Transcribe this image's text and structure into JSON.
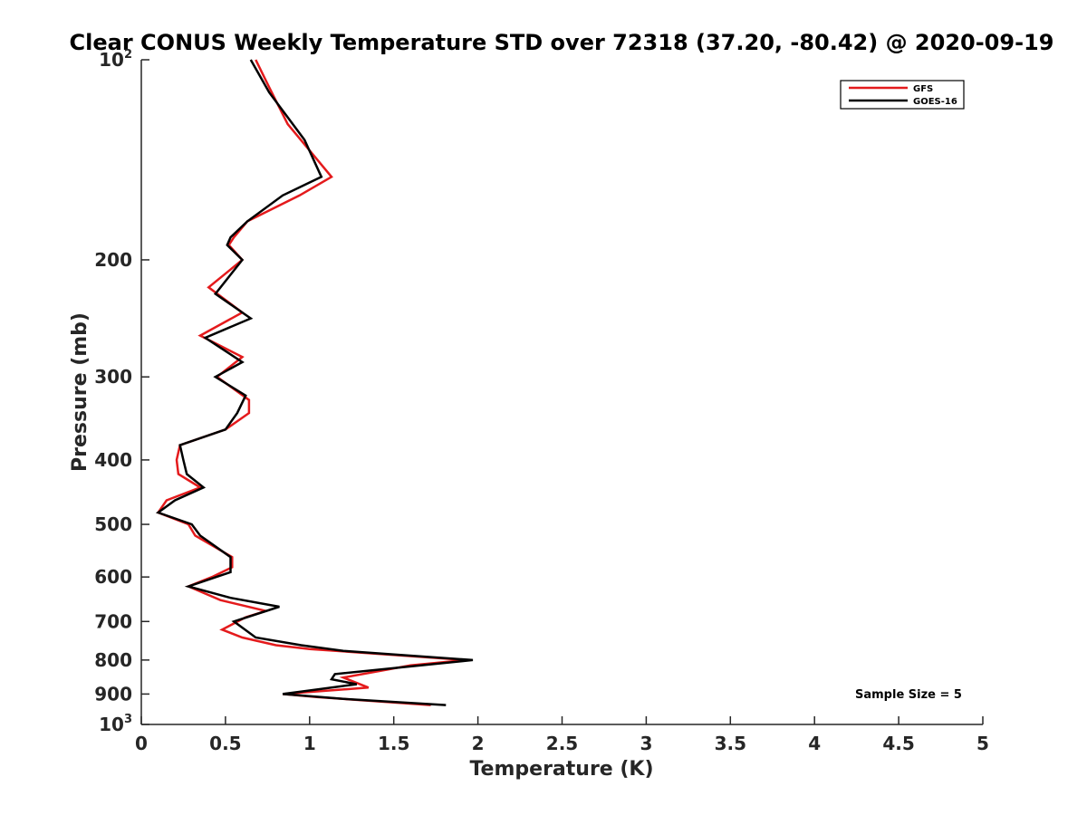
{
  "chart_data": {
    "type": "line",
    "title": "Clear CONUS Weekly Temperature STD over 72318 (37.20, -80.42) @ 2020-09-19",
    "xlabel": "Temperature (K)",
    "ylabel": "Pressure (mb)",
    "xlim": [
      0,
      5
    ],
    "ylim": [
      1000,
      100
    ],
    "yscale": "log",
    "y_reversed": true,
    "xticks": [
      "0",
      "0.5",
      "1",
      "1.5",
      "2",
      "2.5",
      "3",
      "3.5",
      "4",
      "4.5",
      "5"
    ],
    "xtick_values": [
      0,
      0.5,
      1,
      1.5,
      2,
      2.5,
      3,
      3.5,
      4,
      4.5,
      5
    ],
    "yticks": [
      {
        "value": 100,
        "base": "10",
        "exp": "2"
      },
      {
        "value": 200,
        "label": "200"
      },
      {
        "value": 300,
        "label": "300"
      },
      {
        "value": 400,
        "label": "400"
      },
      {
        "value": 500,
        "label": "500"
      },
      {
        "value": 600,
        "label": "600"
      },
      {
        "value": 700,
        "label": "700"
      },
      {
        "value": 800,
        "label": "800"
      },
      {
        "value": 900,
        "label": "900"
      },
      {
        "value": 1000,
        "base": "10",
        "exp": "3"
      }
    ],
    "legend_position": "top-right",
    "annotation": "Sample Size = 5",
    "grid": false,
    "series": [
      {
        "name": "GFS",
        "color": "#e41a1c",
        "points": [
          [
            0.68,
            100
          ],
          [
            0.76,
            110
          ],
          [
            0.87,
            125
          ],
          [
            1.13,
            150
          ],
          [
            0.94,
            160
          ],
          [
            0.63,
            175
          ],
          [
            0.55,
            185
          ],
          [
            0.52,
            190
          ],
          [
            0.6,
            200
          ],
          [
            0.4,
            220
          ],
          [
            0.6,
            240
          ],
          [
            0.35,
            260
          ],
          [
            0.6,
            280
          ],
          [
            0.45,
            300
          ],
          [
            0.64,
            325
          ],
          [
            0.64,
            340
          ],
          [
            0.5,
            360
          ],
          [
            0.23,
            380
          ],
          [
            0.21,
            400
          ],
          [
            0.22,
            420
          ],
          [
            0.35,
            440
          ],
          [
            0.15,
            460
          ],
          [
            0.1,
            480
          ],
          [
            0.28,
            500
          ],
          [
            0.32,
            520
          ],
          [
            0.54,
            560
          ],
          [
            0.54,
            580
          ],
          [
            0.42,
            600
          ],
          [
            0.28,
            620
          ],
          [
            0.47,
            650
          ],
          [
            0.74,
            675
          ],
          [
            0.62,
            690
          ],
          [
            0.48,
            720
          ],
          [
            0.6,
            740
          ],
          [
            0.8,
            760
          ],
          [
            1.0,
            770
          ],
          [
            1.93,
            800
          ],
          [
            1.6,
            815
          ],
          [
            1.2,
            850
          ],
          [
            1.35,
            880
          ],
          [
            0.84,
            900
          ],
          [
            1.05,
            910
          ],
          [
            1.72,
            935
          ]
        ]
      },
      {
        "name": "GOES-16",
        "color": "#000000",
        "points": [
          [
            0.65,
            100
          ],
          [
            0.76,
            112
          ],
          [
            0.97,
            132
          ],
          [
            1.07,
            150
          ],
          [
            0.84,
            160
          ],
          [
            0.63,
            175
          ],
          [
            0.53,
            185
          ],
          [
            0.51,
            190
          ],
          [
            0.6,
            200
          ],
          [
            0.44,
            225
          ],
          [
            0.65,
            245
          ],
          [
            0.38,
            262
          ],
          [
            0.6,
            285
          ],
          [
            0.44,
            300
          ],
          [
            0.62,
            320
          ],
          [
            0.57,
            340
          ],
          [
            0.5,
            360
          ],
          [
            0.23,
            380
          ],
          [
            0.25,
            400
          ],
          [
            0.27,
            420
          ],
          [
            0.37,
            440
          ],
          [
            0.2,
            460
          ],
          [
            0.1,
            480
          ],
          [
            0.3,
            500
          ],
          [
            0.35,
            520
          ],
          [
            0.53,
            560
          ],
          [
            0.53,
            590
          ],
          [
            0.28,
            620
          ],
          [
            0.53,
            645
          ],
          [
            0.82,
            665
          ],
          [
            0.55,
            700
          ],
          [
            0.68,
            740
          ],
          [
            0.95,
            760
          ],
          [
            1.2,
            775
          ],
          [
            1.97,
            800
          ],
          [
            1.15,
            840
          ],
          [
            1.13,
            855
          ],
          [
            1.28,
            870
          ],
          [
            0.84,
            900
          ],
          [
            1.2,
            915
          ],
          [
            1.81,
            935
          ]
        ]
      }
    ]
  }
}
